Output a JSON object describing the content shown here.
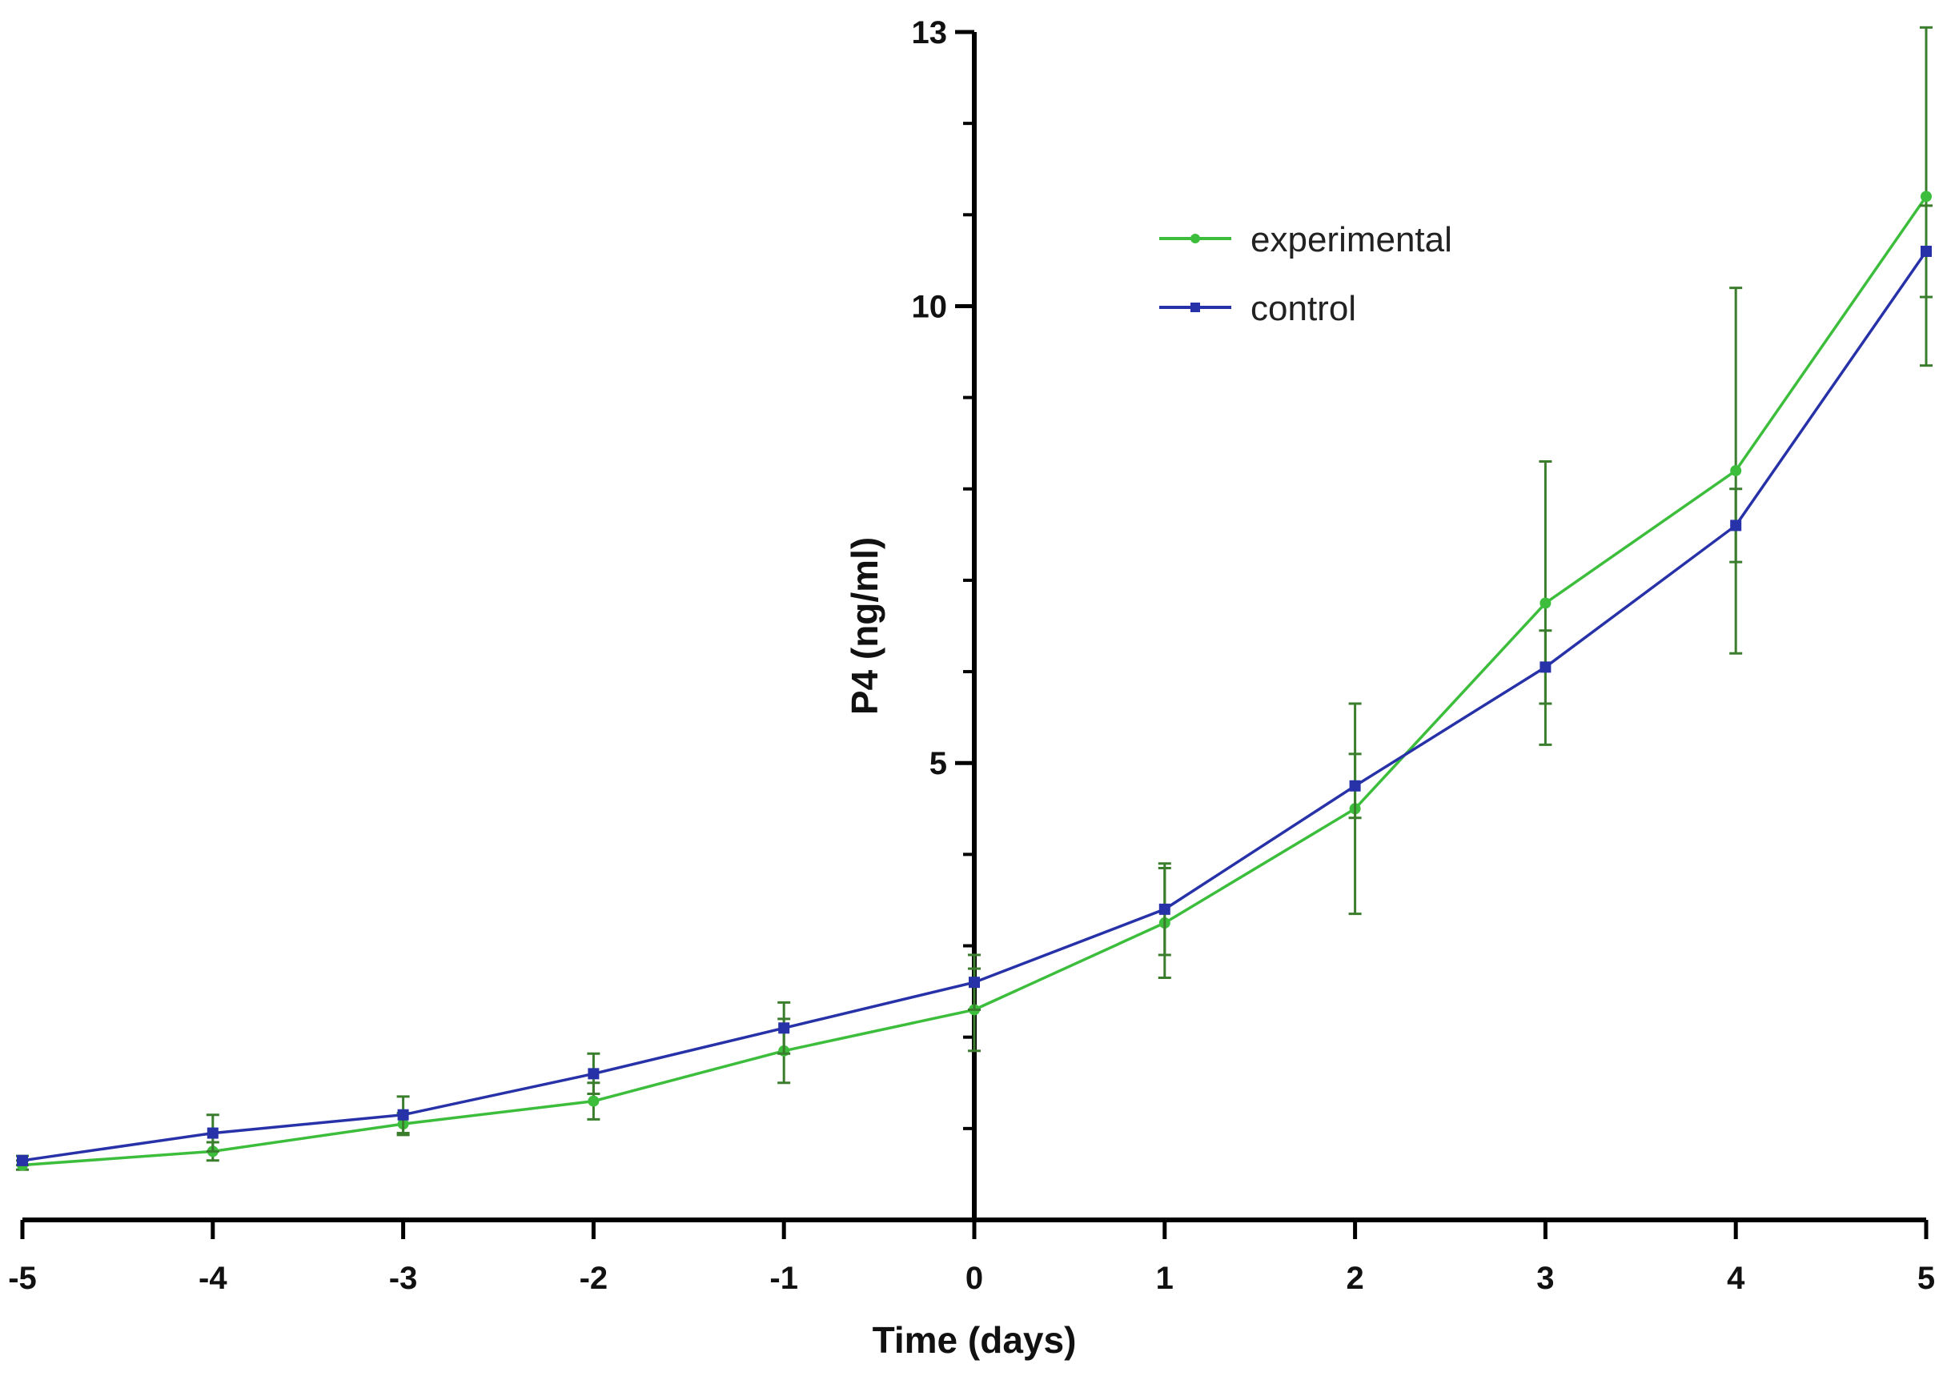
{
  "chart_data": {
    "type": "line",
    "title": "",
    "xlabel": "Time (days)",
    "ylabel": "P4 (ng/ml)",
    "x": [
      -5,
      -4,
      -3,
      -2,
      -1,
      0,
      1,
      2,
      3,
      4,
      5
    ],
    "xlim": [
      -5,
      5
    ],
    "ylim": [
      0,
      13
    ],
    "x_ticks": [
      "-5",
      "-4",
      "-3",
      "-2",
      "-1",
      "0",
      "1",
      "2",
      "3",
      "4",
      "5"
    ],
    "y_ticks": [
      {
        "value": 5,
        "label": "5"
      },
      {
        "value": 10,
        "label": "10"
      },
      {
        "value": 13,
        "label": "13"
      }
    ],
    "y_minor_ticks": [
      1,
      2,
      3,
      4,
      6,
      7,
      8,
      9,
      11,
      12
    ],
    "grid": false,
    "legend_position": "top-right",
    "series": [
      {
        "name": "experimental",
        "color": "#3cbe3c",
        "error_color": "#3a7d2c",
        "marker": "circle",
        "values": [
          0.6,
          0.75,
          1.05,
          1.3,
          1.85,
          2.3,
          3.25,
          4.5,
          6.75,
          8.2,
          11.2
        ],
        "errors": [
          0.05,
          0.1,
          0.12,
          0.2,
          0.35,
          0.45,
          0.6,
          1.15,
          1.55,
          2.0,
          1.85
        ]
      },
      {
        "name": "control",
        "color": "#2832a8",
        "error_color": "#3a7d2c",
        "marker": "square",
        "values": [
          0.65,
          0.95,
          1.15,
          1.6,
          2.1,
          2.6,
          3.4,
          4.75,
          6.05,
          7.6,
          10.6
        ],
        "errors": [
          0.05,
          0.2,
          0.2,
          0.22,
          0.28,
          0.3,
          0.5,
          0.35,
          0.4,
          0.4,
          0.5
        ]
      }
    ]
  }
}
